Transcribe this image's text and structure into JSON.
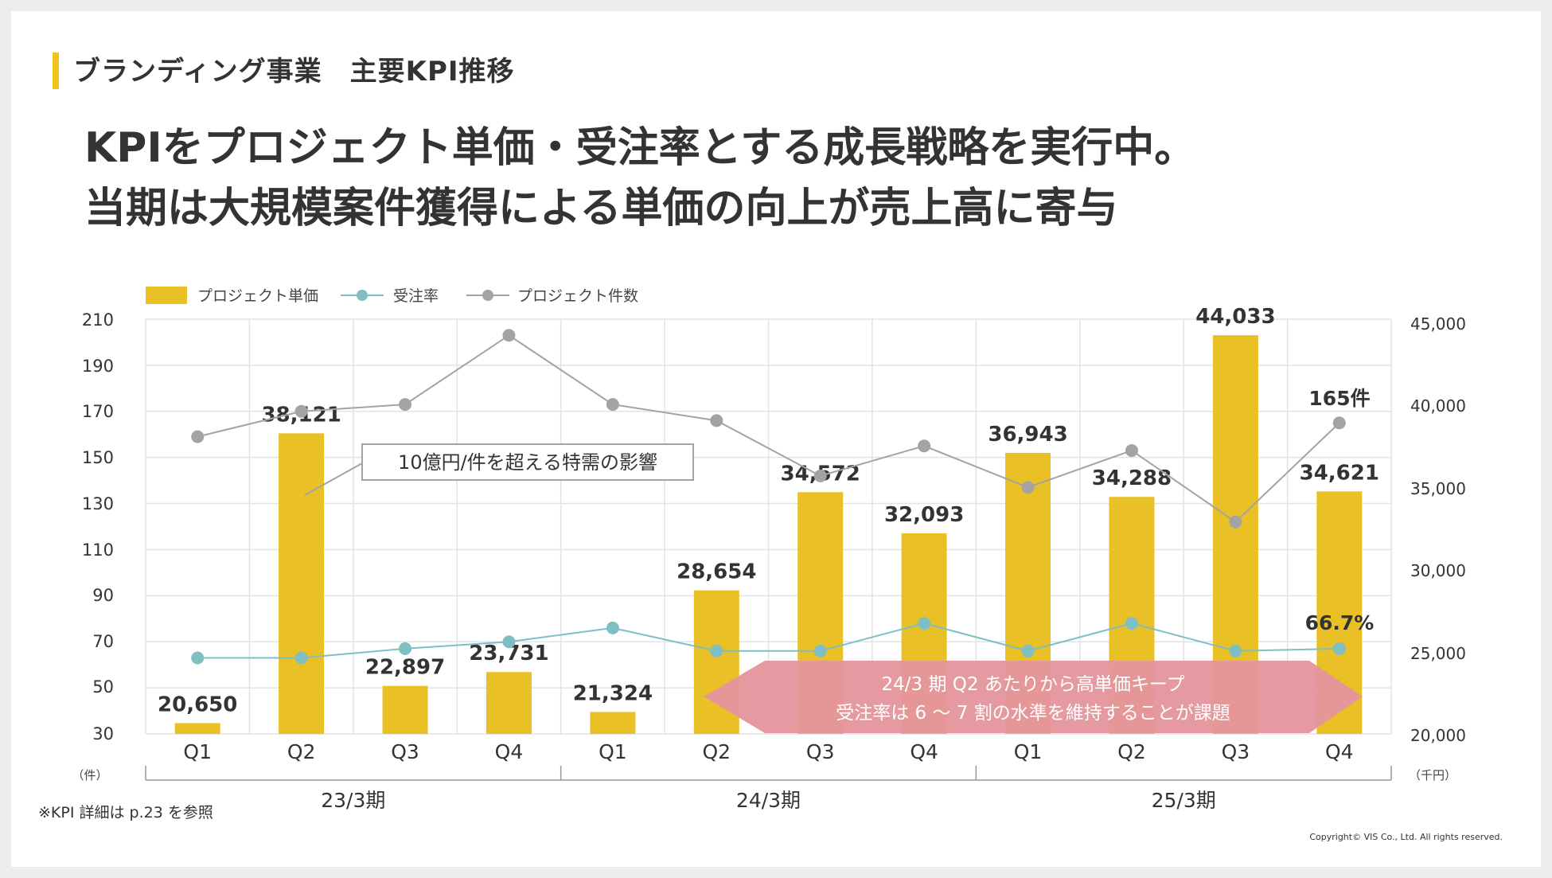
{
  "section": {
    "title": "ブランディング事業　主要KPI推移"
  },
  "headline": {
    "line1": "KPIをプロジェクト単価・受注率とする成長戦略を実行中。",
    "line2": "当期は大規模案件獲得による単価の向上が売上高に寄与"
  },
  "footnote": "※KPI 詳細は p.23 を参照",
  "copyright": "Copyright© VIS Co., Ltd. All rights reserved.",
  "colors": {
    "bar": "#e9c026",
    "rate": "#7fbfc3",
    "count": "#a3a3a3",
    "callout": "#e4959c",
    "accent": "#f2c31b"
  },
  "chart_data": {
    "type": "bar",
    "categories": [
      "Q1",
      "Q2",
      "Q3",
      "Q4",
      "Q1",
      "Q2",
      "Q3",
      "Q4",
      "Q1",
      "Q2",
      "Q3",
      "Q4"
    ],
    "fiscal_groups": [
      "23/3期",
      "24/3期",
      "25/3期"
    ],
    "legend": [
      "プロジェクト単価",
      "受注率",
      "プロジェクト件数"
    ],
    "left_axis": {
      "ticks": [
        "210",
        "190",
        "170",
        "150",
        "130",
        "110",
        "90",
        "70",
        "50",
        "30"
      ],
      "unit": "（件）",
      "range": [
        30,
        210
      ]
    },
    "right_axis": {
      "ticks": [
        "45,000",
        "40,000",
        "35,000",
        "30,000",
        "25,000",
        "20,000"
      ],
      "unit": "（千円）",
      "range": [
        20000,
        45000
      ]
    },
    "series": [
      {
        "name": "プロジェクト単価",
        "type": "bar",
        "axis": "right",
        "values": [
          20650,
          38121,
          22897,
          23731,
          21324,
          28654,
          34572,
          32093,
          36943,
          34288,
          44033,
          34621
        ],
        "labels": [
          "20,650",
          "38,121",
          "22,897",
          "23,731",
          "21,324",
          "28,654",
          "34,572",
          "32,093",
          "36,943",
          "34,288",
          "44,033",
          "34,621"
        ]
      },
      {
        "name": "受注率",
        "type": "line",
        "axis": "left",
        "values": [
          63,
          63,
          67,
          70,
          76,
          66,
          66,
          78,
          66,
          78,
          66,
          67
        ]
      },
      {
        "name": "プロジェクト件数",
        "type": "line",
        "axis": "left",
        "values": [
          159,
          170,
          173,
          203,
          173,
          166,
          142,
          155,
          137,
          153,
          122,
          165
        ]
      }
    ],
    "annotations": {
      "count_last": "165件",
      "rate_last": "66.7%",
      "special_note": "10億円/件を超える特需の影響",
      "callout_line1": "24/3 期 Q2 あたりから高単価キープ",
      "callout_line2": "受注率は 6 〜 7 割の水準を維持することが課題"
    }
  }
}
